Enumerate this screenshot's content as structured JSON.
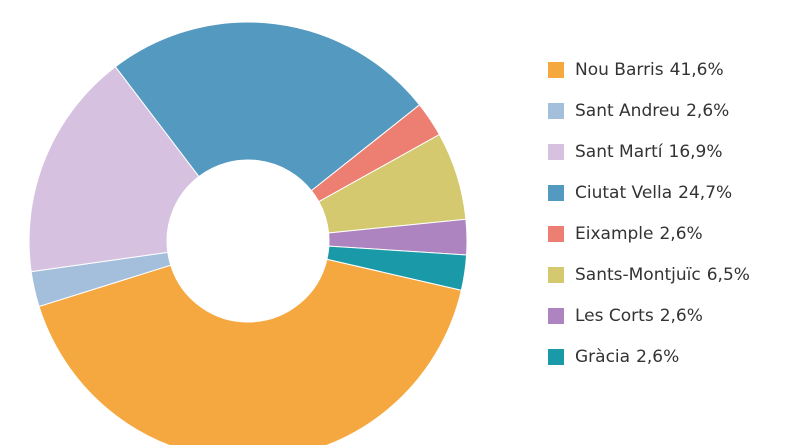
{
  "chart_data": {
    "type": "donut",
    "categories": [
      "Nou Barris",
      "Sant Andreu",
      "Sant Martí",
      "Ciutat Vella",
      "Eixample",
      "Sants-Montjuïc",
      "Les Corts",
      "Gràcia"
    ],
    "values": [
      41.6,
      2.6,
      16.9,
      24.7,
      2.6,
      6.5,
      2.6,
      2.6
    ],
    "value_labels": [
      "41,6%",
      "2,6%",
      "16,9%",
      "24,7%",
      "2,6%",
      "6,5%",
      "2,6%",
      "2,6%"
    ],
    "colors": [
      "#f5a840",
      "#a3bfdc",
      "#d6c2e0",
      "#5499c0",
      "#ec7f72",
      "#d4c96e",
      "#ae84c0",
      "#1a9aa8"
    ],
    "legend": "right"
  }
}
